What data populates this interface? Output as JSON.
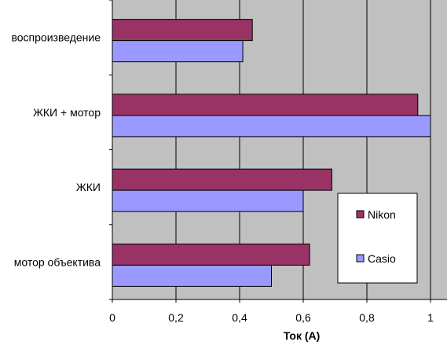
{
  "chart_data": {
    "type": "bar",
    "orientation": "horizontal",
    "categories": [
      "мотор объектива",
      "ЖКИ",
      "ЖКИ + мотор",
      "воспроизведение"
    ],
    "series": [
      {
        "name": "Nikon",
        "color": "#993366",
        "values": [
          0.62,
          0.69,
          0.96,
          0.44
        ]
      },
      {
        "name": "Casio",
        "color": "#9999ff",
        "values": [
          0.5,
          0.6,
          1.0,
          0.41
        ]
      }
    ],
    "xlabel": "Ток (А)",
    "ylabel": "",
    "xlim": [
      0,
      1.05
    ],
    "xticks": [
      0,
      0.2,
      0.4,
      0.6,
      0.8,
      1
    ],
    "xtick_labels": [
      "0",
      "0,2",
      "0,4",
      "0,6",
      "0,8",
      "1"
    ],
    "grid": true,
    "plot_background": "#c0c0c0",
    "legend_position": "right"
  }
}
